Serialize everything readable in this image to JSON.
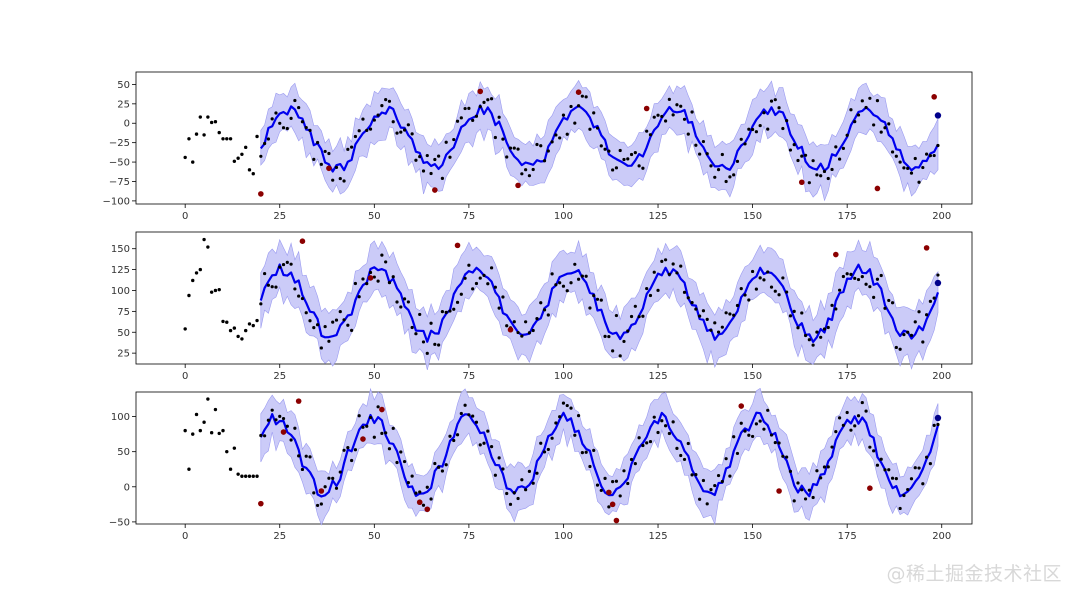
{
  "watermark": "@稀土掘金技术社区",
  "style": {
    "mean_color": "#0000ee",
    "band_color": "#c8c8f8",
    "band_edge": "#9a9af0",
    "observed_color": "#000000",
    "anomaly_color": "#8b0000",
    "last_point_color": "#00008b"
  },
  "chart_data": [
    {
      "type": "line",
      "title": "",
      "xlabel": "",
      "ylabel": "",
      "xlim": [
        -13,
        208
      ],
      "ylim": [
        -104,
        66
      ],
      "xticks": [
        0,
        25,
        50,
        75,
        100,
        125,
        150,
        175,
        200
      ],
      "yticks": [
        -100,
        -75,
        -50,
        -25,
        0,
        25,
        50
      ],
      "grid": false,
      "forecast_start": 20,
      "forecast_end": 199,
      "mean_offset": -20,
      "amplitude": 38,
      "band_half_width": 28,
      "phase_offset": -0.25,
      "history": [
        [
          0,
          -44
        ],
        [
          1,
          -20
        ],
        [
          2,
          -50
        ],
        [
          3,
          -14
        ],
        [
          4,
          8
        ],
        [
          5,
          -15
        ],
        [
          6,
          8
        ],
        [
          7,
          1
        ],
        [
          8,
          2
        ],
        [
          9,
          -12
        ],
        [
          10,
          -20
        ],
        [
          11,
          -20
        ],
        [
          12,
          -20
        ],
        [
          13,
          -49
        ],
        [
          14,
          -45
        ],
        [
          15,
          -40
        ],
        [
          16,
          -31
        ],
        [
          17,
          -60
        ],
        [
          18,
          -65
        ],
        [
          19,
          -17
        ]
      ],
      "anomalies": [
        [
          20,
          -91
        ],
        [
          38,
          -58
        ],
        [
          66,
          -86
        ],
        [
          78,
          41
        ],
        [
          88,
          -80
        ],
        [
          104,
          40
        ],
        [
          122,
          19
        ],
        [
          163,
          -76
        ],
        [
          183,
          -84
        ],
        [
          198,
          34
        ]
      ],
      "last_point": [
        199,
        10
      ]
    },
    {
      "type": "line",
      "title": "",
      "xlabel": "",
      "ylabel": "",
      "xlim": [
        -13,
        208
      ],
      "ylim": [
        12,
        170
      ],
      "xticks": [
        0,
        25,
        50,
        75,
        100,
        125,
        150,
        175,
        200
      ],
      "yticks": [
        25,
        50,
        75,
        100,
        125,
        150
      ],
      "grid": false,
      "forecast_start": 20,
      "forecast_end": 199,
      "mean_offset": 85,
      "amplitude": 40,
      "band_half_width": 28,
      "phase_offset": 0.15,
      "history": [
        [
          0,
          54
        ],
        [
          1,
          94
        ],
        [
          2,
          112
        ],
        [
          3,
          121
        ],
        [
          4,
          125
        ],
        [
          5,
          161
        ],
        [
          6,
          152
        ],
        [
          7,
          98
        ],
        [
          8,
          100
        ],
        [
          9,
          101
        ],
        [
          10,
          63
        ],
        [
          11,
          62
        ],
        [
          12,
          52
        ],
        [
          13,
          55
        ],
        [
          14,
          45
        ],
        [
          15,
          42
        ],
        [
          16,
          52
        ],
        [
          17,
          60
        ],
        [
          18,
          58
        ],
        [
          19,
          64
        ]
      ],
      "anomalies": [
        [
          31,
          159
        ],
        [
          49,
          115
        ],
        [
          72,
          154
        ],
        [
          86,
          53
        ],
        [
          172,
          143
        ],
        [
          196,
          151
        ]
      ],
      "last_point": [
        199,
        109
      ]
    },
    {
      "type": "line",
      "title": "",
      "xlabel": "",
      "ylabel": "",
      "xlim": [
        -13,
        208
      ],
      "ylim": [
        -53,
        135
      ],
      "xticks": [
        0,
        25,
        50,
        75,
        100,
        125,
        150,
        175,
        200
      ],
      "yticks": [
        -50,
        0,
        50,
        100
      ],
      "grid": false,
      "forecast_start": 20,
      "forecast_end": 199,
      "mean_offset": 45,
      "amplitude": 52,
      "band_half_width": 30,
      "phase_offset": 0.6,
      "history": [
        [
          0,
          80
        ],
        [
          1,
          25
        ],
        [
          2,
          75
        ],
        [
          3,
          103
        ],
        [
          4,
          80
        ],
        [
          5,
          92
        ],
        [
          6,
          125
        ],
        [
          7,
          77
        ],
        [
          8,
          110
        ],
        [
          9,
          76
        ],
        [
          10,
          80
        ],
        [
          11,
          50
        ],
        [
          12,
          25
        ],
        [
          13,
          55
        ],
        [
          14,
          18
        ],
        [
          15,
          15
        ],
        [
          16,
          15
        ],
        [
          17,
          15
        ],
        [
          18,
          15
        ],
        [
          19,
          15
        ]
      ],
      "anomalies": [
        [
          20,
          -24
        ],
        [
          26,
          78
        ],
        [
          30,
          122
        ],
        [
          36,
          -6
        ],
        [
          47,
          68
        ],
        [
          52,
          110
        ],
        [
          62,
          -22
        ],
        [
          64,
          -32
        ],
        [
          112,
          -8
        ],
        [
          113,
          -25
        ],
        [
          114,
          -48
        ],
        [
          147,
          115
        ],
        [
          157,
          -6
        ],
        [
          181,
          -2
        ]
      ],
      "last_point": [
        199,
        98
      ]
    }
  ]
}
